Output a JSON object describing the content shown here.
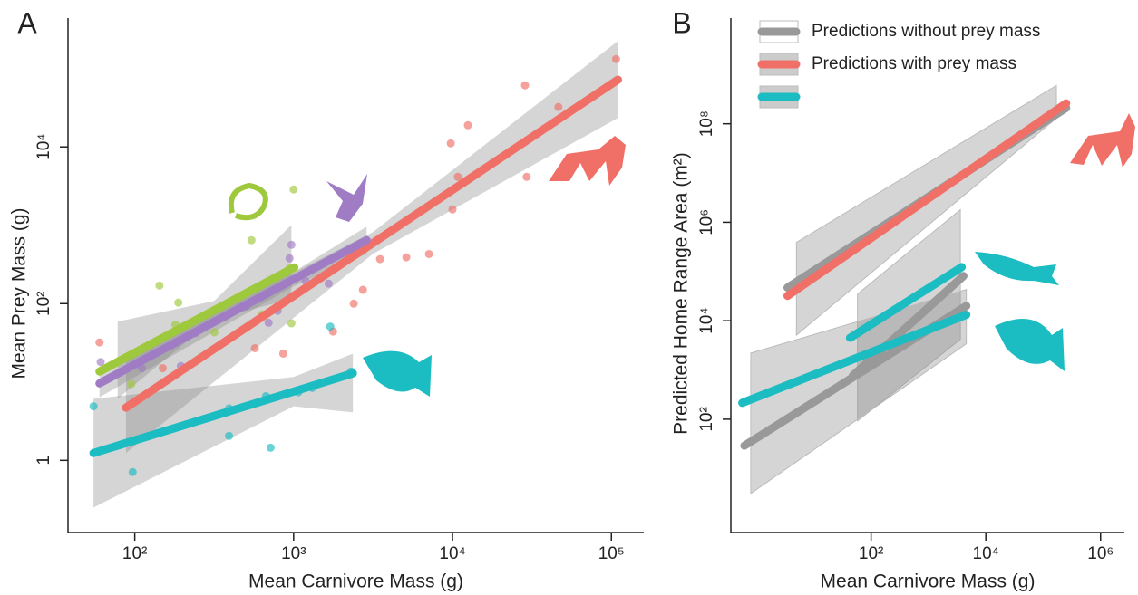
{
  "chart_data": [
    {
      "type": "scatter",
      "panel_label": "A",
      "log_x": true,
      "log_y": true,
      "x_label": "Mean Carnivore Mass (g)",
      "y_label": "Mean Prey Mass (g)",
      "xlim": [
        38,
        160000
      ],
      "ylim": [
        0.12,
        440000
      ],
      "xticks": [
        {
          "value": 100,
          "label": "10²"
        },
        {
          "value": 1000,
          "label": "10³"
        },
        {
          "value": 10000,
          "label": "10⁴"
        },
        {
          "value": 100000,
          "label": "10⁵"
        }
      ],
      "yticks": [
        1,
        {
          "value": 100,
          "label": "10²"
        },
        {
          "value": 10000,
          "label": "10⁴"
        }
      ],
      "series": [
        {
          "color": "#f07068",
          "points": {
            "x": [
              60,
              150,
              570,
              860,
              1770,
              2390,
              2730,
              3500,
              5120,
              7110,
              10000,
              9750,
              10800,
              12500,
              29300,
              28600,
              46400,
              107000
            ],
            "y": [
              32,
              15,
              27,
              23,
              44,
              100,
              150,
              370,
              390,
              430,
              1590,
              11100,
              4150,
              18900,
              4150,
              61100,
              32300,
              132000
            ]
          },
          "fit": {
            "x": [
              88,
              110000
            ],
            "y": [
              4.7,
              72000
            ]
          },
          "band": {
            "x": [
              88,
              3160,
              110000
            ],
            "upper": [
              20,
              819,
              225000
            ],
            "lower": [
              1.24,
              432,
              23400
            ]
          }
        },
        {
          "color": "#a07cc5",
          "points": {
            "x": [
              61,
              111,
              195,
              241,
              366,
              502,
              696,
              794,
              942,
              968,
              1190,
              1660
            ],
            "y": [
              18,
              15,
              16,
              42,
              67,
              92,
              57,
              81,
              378,
              564,
              194,
              180
            ]
          },
          "fit": {
            "x": [
              60,
              2880
            ],
            "y": [
              9.6,
              645
            ]
          },
          "band": {
            "x": [
              60,
              1000,
              2880
            ],
            "upper": [
              14.3,
              254,
              962
            ],
            "lower": [
              6.4,
              166,
              432
            ]
          }
        },
        {
          "color": "#9fc93c",
          "points": {
            "x": [
              66,
              95,
              143,
              188,
              180,
              317,
              543,
              636,
              968,
              1000,
              942
            ],
            "y": [
              15,
              9.4,
              170,
              103,
              54,
              43,
              645,
              73,
              56,
              2860,
              282
            ]
          },
          "fit": {
            "x": [
              60,
              1010
            ],
            "y": [
              13.6,
              290
            ]
          },
          "band": {
            "x": [
              78,
              316,
              968
            ],
            "upper": [
              59,
              108,
              1010
            ],
            "lower": [
              6.1,
              64,
              114
            ]
          }
        },
        {
          "color": "#1bbcc2",
          "points": {
            "x": [
              55,
              97,
              392,
              392,
              670,
              716,
              1070,
              1310,
              1700,
              2300
            ],
            "y": [
              4.9,
              0.71,
              4.6,
              2.05,
              6.6,
              1.45,
              7.4,
              8.4,
              51,
              13.6
            ]
          },
          "fit": {
            "x": [
              55,
              2360
            ],
            "y": [
              1.24,
              12.9
            ]
          },
          "band": {
            "x": [
              55,
              1000,
              2360
            ],
            "upper": [
              6.1,
              11.6,
              23
            ],
            "lower": [
              0.25,
              4.9,
              4.1
            ]
          }
        }
      ]
    },
    {
      "type": "line",
      "panel_label": "B",
      "log_x": true,
      "log_y": true,
      "x_label": "Mean Carnivore Mass (g)",
      "y_label": "Predicted Home Range Area (m²)",
      "xlim": [
        0.36,
        2600000
      ],
      "ylim": [
        0.5,
        14000000000
      ],
      "xticks": [
        {
          "value": 100,
          "label": "10²"
        },
        {
          "value": 10000,
          "label": "10⁴"
        },
        {
          "value": 1000000,
          "label": "10⁶"
        }
      ],
      "yticks": [
        {
          "value": 100,
          "label": "10²"
        },
        {
          "value": 10000,
          "label": "10⁴"
        },
        {
          "value": 1000000,
          "label": "10⁶"
        },
        {
          "value": 100000000,
          "label": "10⁸"
        }
      ],
      "legend": [
        {
          "label": "Predictions without prey mass",
          "colors": [
            "#999999"
          ]
        },
        {
          "label": "Predictions with prey mass",
          "colors": [
            "#f07068",
            "#1bbcc2"
          ]
        }
      ],
      "bands": [
        {
          "x": [
            5,
            170000
          ],
          "upper": [
            390000,
            600000000
          ],
          "lower": [
            5100,
            130000000
          ]
        },
        {
          "x": [
            58,
            3600
          ],
          "upper": [
            35000,
            1800000
          ],
          "lower": [
            92,
            4200
          ]
        },
        {
          "x": [
            0.8,
            4570
          ],
          "upper": [
            2200,
            43000
          ],
          "lower": [
            3.1,
            3400
          ]
        }
      ],
      "series": [
        {
          "color": "#999999",
          "x": [
            3.5,
            251000
          ],
          "y": [
            47000,
            210000000
          ]
        },
        {
          "color": "#f07068",
          "x": [
            3.5,
            251000
          ],
          "y": [
            32000,
            260000000
          ]
        },
        {
          "color": "#999999",
          "x": [
            0.62,
            4570
          ],
          "y": [
            29,
            20000
          ]
        },
        {
          "color": "#999999",
          "x": [
            48,
            4070
          ],
          "y": [
            766,
            81000
          ]
        },
        {
          "color": "#1bbcc2",
          "x": [
            43,
            3800
          ],
          "y": [
            4500,
            123000
          ]
        },
        {
          "color": "#1bbcc2",
          "x": [
            0.57,
            4570
          ],
          "y": [
            215,
            13200
          ]
        }
      ]
    }
  ]
}
